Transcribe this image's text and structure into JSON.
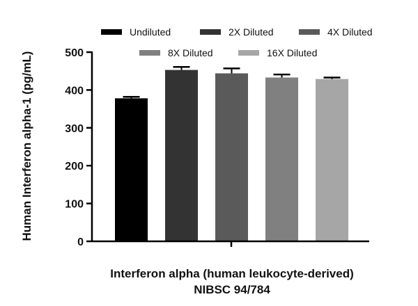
{
  "chart_data": {
    "type": "bar",
    "title": "",
    "ylabel": "Human Interferon alpha-1 (pg/mL)",
    "xlabel": "Interferon alpha (human leukocyte-derived)",
    "xlabel_line2": "NIBSC 94/784",
    "ylim": [
      0,
      500
    ],
    "yticks": [
      0,
      100,
      200,
      300,
      400,
      500
    ],
    "grid": false,
    "legend_position": "top",
    "series": [
      {
        "name": "Undiluted",
        "value": 378,
        "error": 4,
        "color": "#000000"
      },
      {
        "name": "2X Diluted",
        "value": 453,
        "error": 8,
        "color": "#333333"
      },
      {
        "name": "4X Diluted",
        "value": 444,
        "error": 13,
        "color": "#5a5a5a"
      },
      {
        "name": "8X Diluted",
        "value": 433,
        "error": 8,
        "color": "#808080"
      },
      {
        "name": "16X Diluted",
        "value": 429,
        "error": 4,
        "color": "#a6a6a6"
      }
    ]
  }
}
